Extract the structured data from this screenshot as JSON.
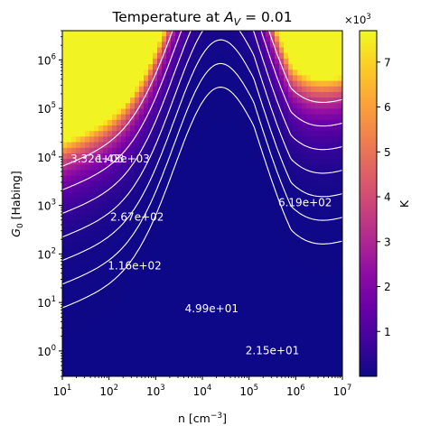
{
  "chart_data": {
    "type": "heatmap",
    "title": "Temperature at A_V = 0.01",
    "title_parts": {
      "prefix": "Temperature at ",
      "var": "A",
      "sub": "V",
      "suffix": " = 0.01"
    },
    "xlabel": "n [cm⁻³]",
    "xlabel_parts": {
      "base": "n [cm",
      "sup": "−3",
      "end": "]"
    },
    "ylabel": "G₀ [Habing]",
    "ylabel_parts": {
      "var": "G",
      "sub": "0",
      "rest": " [Habing]"
    },
    "x_scale": "log",
    "y_scale": "log",
    "xlim": [
      10,
      10000000
    ],
    "ylim": [
      0.3,
      4000000
    ],
    "x_ticks": [
      {
        "value": 10,
        "base": "10",
        "exp": "1"
      },
      {
        "value": 100,
        "base": "10",
        "exp": "2"
      },
      {
        "value": 1000,
        "base": "10",
        "exp": "3"
      },
      {
        "value": 10000,
        "base": "10",
        "exp": "4"
      },
      {
        "value": 100000,
        "base": "10",
        "exp": "5"
      },
      {
        "value": 1000000,
        "base": "10",
        "exp": "6"
      },
      {
        "value": 10000000,
        "base": "10",
        "exp": "7"
      }
    ],
    "y_ticks": [
      {
        "value": 1,
        "base": "10",
        "exp": "0"
      },
      {
        "value": 10,
        "base": "10",
        "exp": "1"
      },
      {
        "value": 100,
        "base": "10",
        "exp": "2"
      },
      {
        "value": 1000,
        "base": "10",
        "exp": "3"
      },
      {
        "value": 10000,
        "base": "10",
        "exp": "4"
      },
      {
        "value": 100000,
        "base": "10",
        "exp": "5"
      },
      {
        "value": 1000000,
        "base": "10",
        "exp": "6"
      }
    ],
    "colormap": "plasma",
    "colorbar": {
      "label": "K",
      "multiplier": {
        "base": "×10",
        "exp": "3"
      },
      "range": [
        0,
        7.7
      ],
      "ticks": [
        "1",
        "2",
        "3",
        "4",
        "5",
        "6",
        "7"
      ]
    },
    "contours": [
      {
        "label": "2.15e+01",
        "value": 21.5
      },
      {
        "label": "4.99e+01",
        "value": 49.9
      },
      {
        "label": "1.16e+02",
        "value": 116
      },
      {
        "label": "2.67e+02",
        "value": 267
      },
      {
        "label": "6.19e+02",
        "value": 619
      },
      {
        "label": "1.43e+03",
        "value": 1430
      },
      {
        "label": "3.32e+03",
        "value": 3320
      }
    ],
    "contour_color": "#ffffff"
  }
}
